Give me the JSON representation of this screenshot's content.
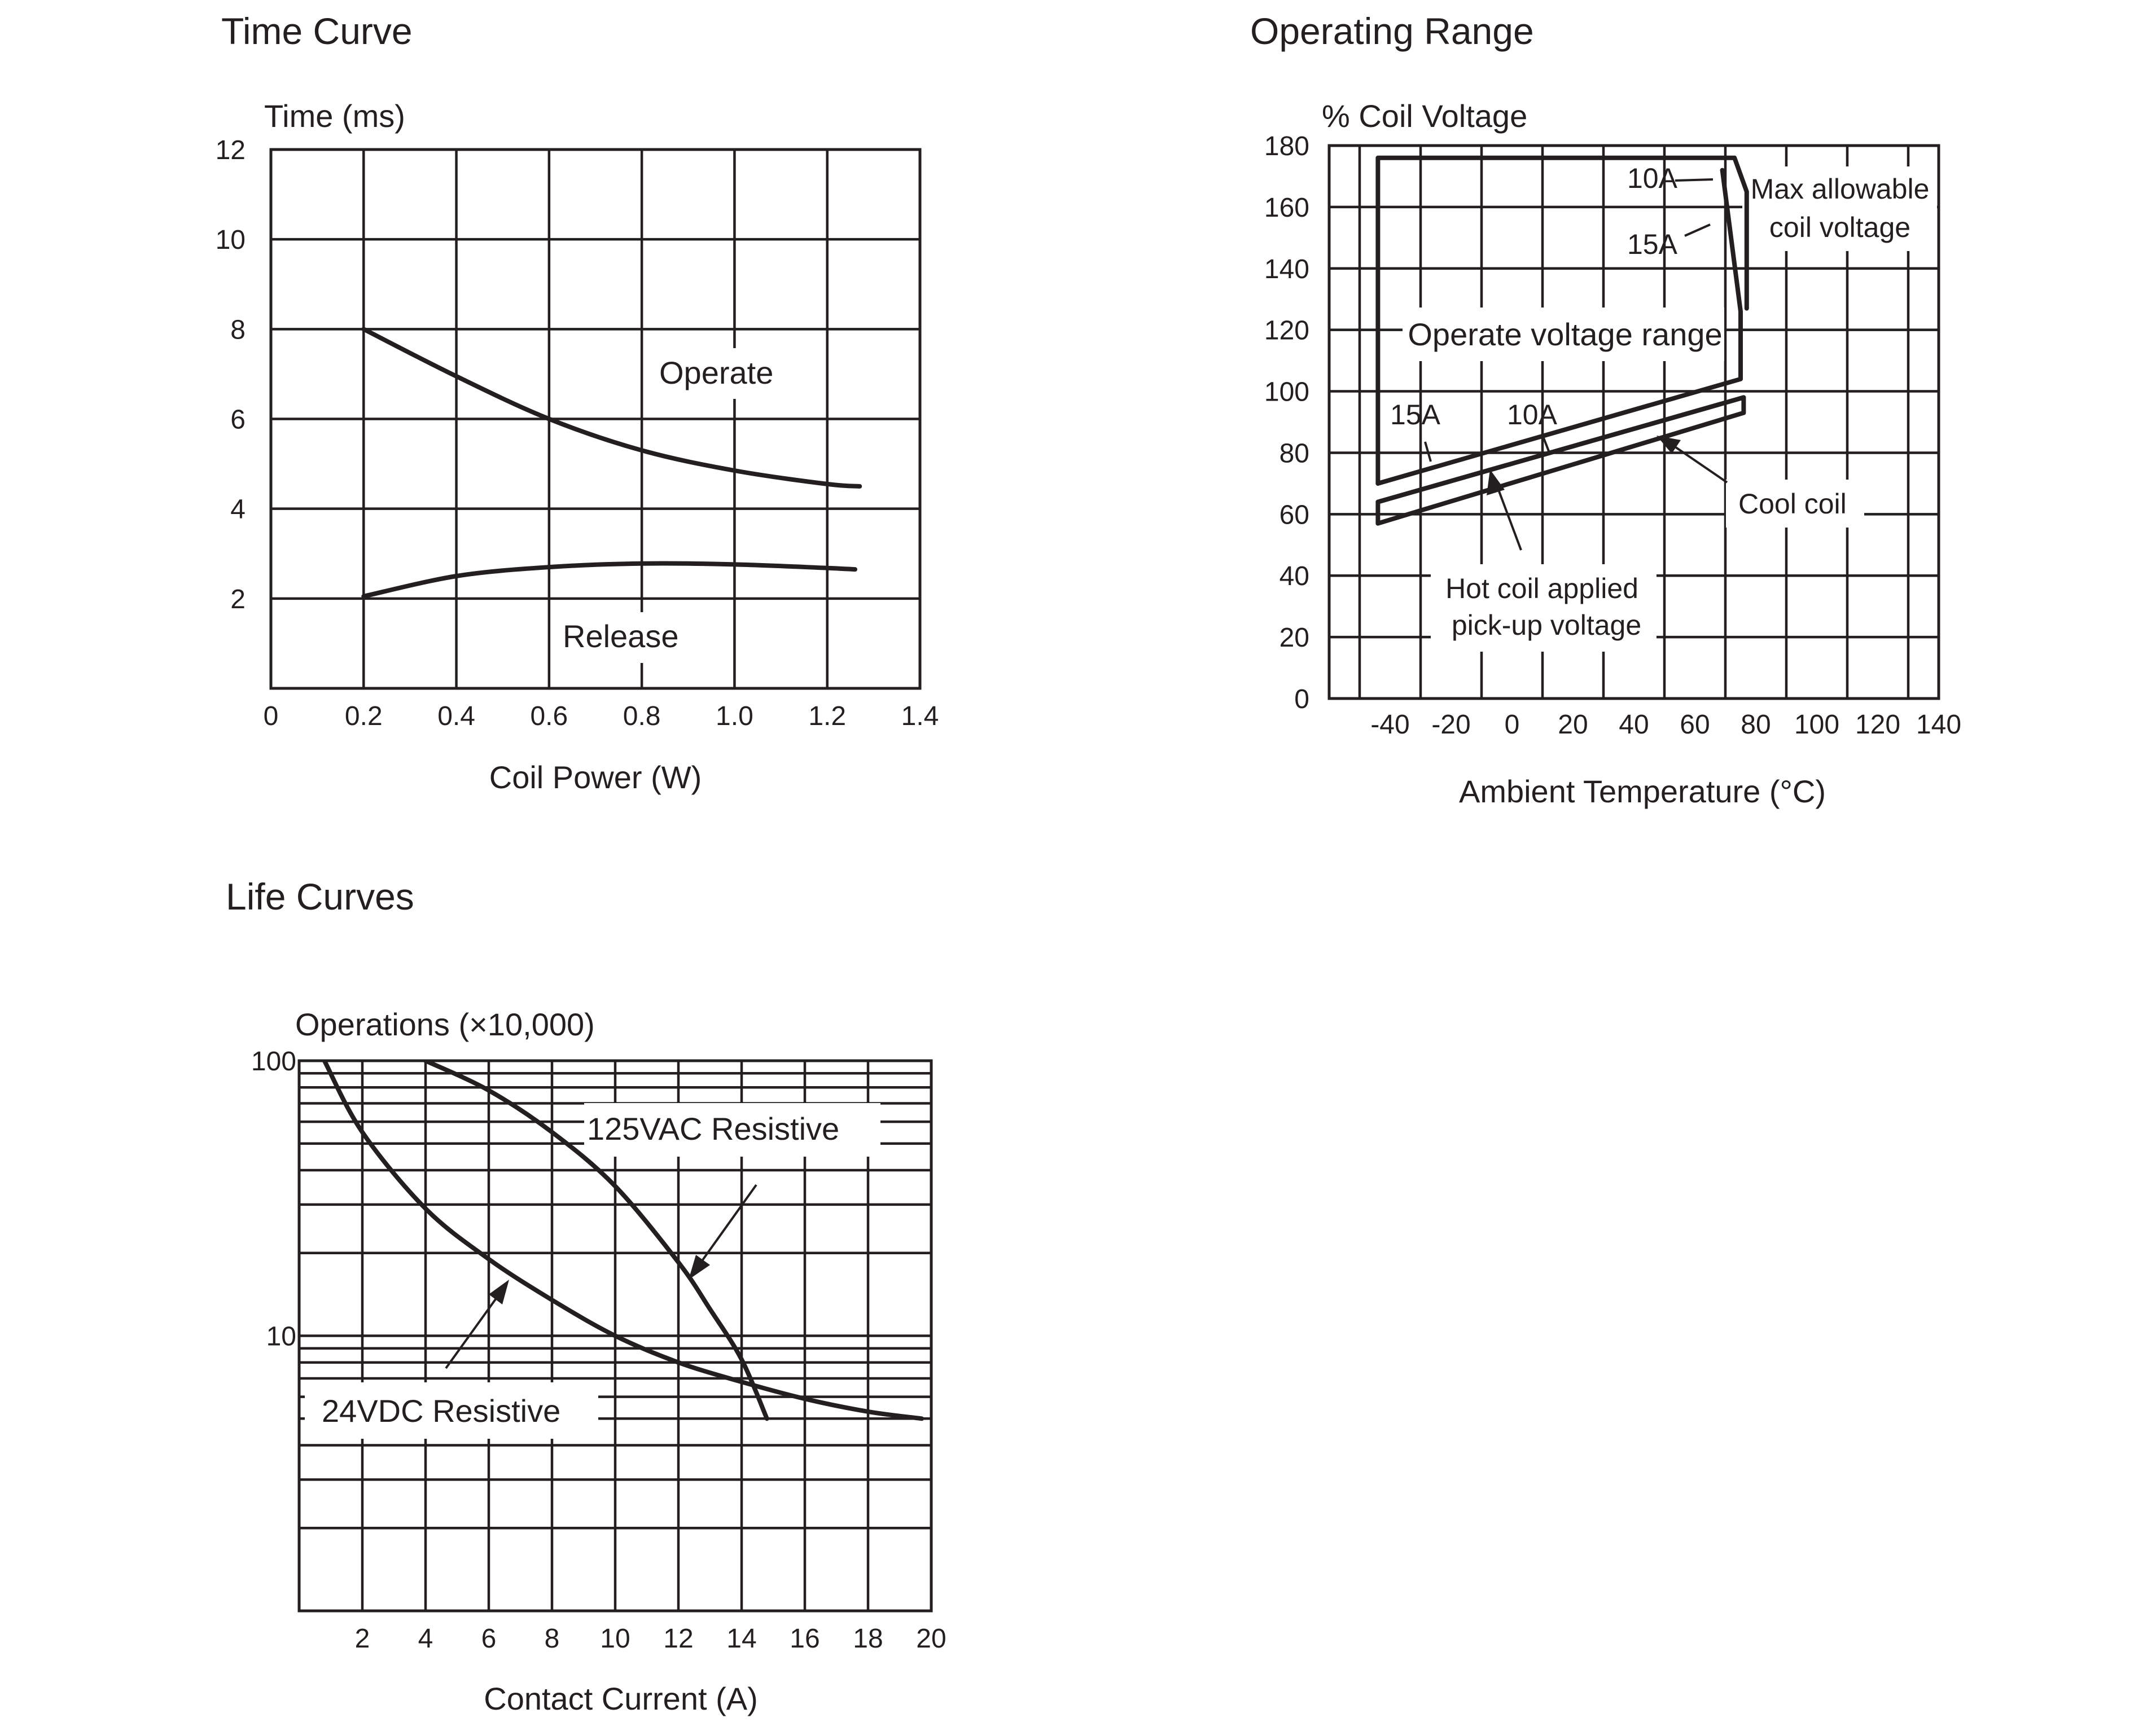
{
  "chart_data": [
    {
      "id": "time",
      "type": "line",
      "title": "Time Curve",
      "ylabel": "Time (ms)",
      "xlabel": "Coil Power (W)",
      "xlim": [
        0,
        1.4
      ],
      "ylim": [
        0,
        12
      ],
      "x_ticks": [
        "0",
        "0.2",
        "0.4",
        "0.6",
        "0.8",
        "1.0",
        "1.2",
        "1.4"
      ],
      "y_ticks": [
        "2",
        "4",
        "6",
        "8",
        "10",
        "12"
      ],
      "grid": true,
      "series": [
        {
          "name": "Operate",
          "x": [
            0.2,
            0.4,
            0.6,
            0.8,
            1.0,
            1.2,
            1.27
          ],
          "y": [
            8.0,
            6.95,
            6.0,
            5.3,
            4.85,
            4.55,
            4.5
          ]
        },
        {
          "name": "Release",
          "x": [
            0.2,
            0.4,
            0.6,
            0.8,
            1.0,
            1.2,
            1.26
          ],
          "y": [
            2.05,
            2.5,
            2.7,
            2.78,
            2.76,
            2.68,
            2.65
          ]
        }
      ]
    },
    {
      "id": "range",
      "type": "line",
      "title": "Operating Range",
      "ylabel": "% Coil Voltage",
      "xlabel": "Ambient Temperature (°C)",
      "xlim": [
        -60,
        140
      ],
      "ylim": [
        0,
        180
      ],
      "x_ticks": [
        "-40",
        "-20",
        "0",
        "20",
        "40",
        "60",
        "80",
        "100",
        "120",
        "140"
      ],
      "y_ticks": [
        "0",
        "20",
        "40",
        "60",
        "80",
        "100",
        "120",
        "140",
        "160",
        "180"
      ],
      "grid": true,
      "series": [
        {
          "x": [
            -44,
            -44,
            73,
            77,
            77
          ],
          "y": [
            70,
            176,
            176,
            165,
            127
          ]
        },
        {
          "x": [
            -44,
            75,
            75,
            69
          ],
          "y": [
            70,
            104,
            126,
            172
          ]
        },
        {
          "x": [
            -44,
            76
          ],
          "y": [
            64,
            98
          ]
        },
        {
          "x": [
            -44,
            76,
            76,
            -44,
            -44
          ],
          "y": [
            57,
            93,
            98,
            64,
            57
          ]
        }
      ],
      "annotations": [
        "10A",
        "15A",
        "Max allowable",
        "coil voltage",
        "Operate voltage range",
        "15A",
        "10A",
        "Cool coil",
        "Hot coil applied",
        "pick-up voltage"
      ]
    },
    {
      "id": "life",
      "type": "line",
      "title": "Life Curves",
      "ylabel": "Operations (×10,000)",
      "xlabel": "Contact Current (A)",
      "xlim": [
        0,
        20
      ],
      "ylim": [
        1,
        100
      ],
      "yscale": "log",
      "x_ticks": [
        "2",
        "4",
        "6",
        "8",
        "10",
        "12",
        "14",
        "16",
        "18",
        "20"
      ],
      "y_ticks": [
        "10",
        "100"
      ],
      "grid": true,
      "series": [
        {
          "name": "24VDC Resistive",
          "x": [
            0.8,
            2,
            4,
            6,
            8,
            10,
            12,
            14,
            16,
            18,
            19.7
          ],
          "y": [
            100,
            55,
            29,
            19,
            13.5,
            10,
            8,
            6.8,
            5.9,
            5.3,
            5
          ]
        },
        {
          "name": "125VAC Resistive",
          "x": [
            4,
            6,
            8,
            10,
            12,
            13,
            14,
            14.8
          ],
          "y": [
            100,
            78,
            55,
            35,
            18.5,
            12.5,
            8.2,
            5
          ]
        }
      ]
    }
  ]
}
